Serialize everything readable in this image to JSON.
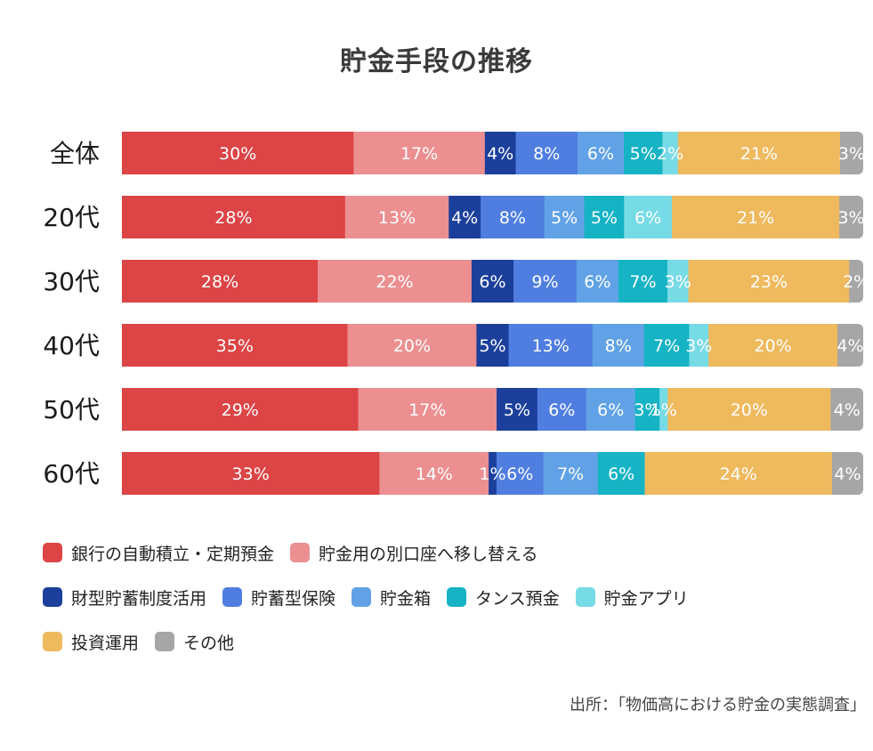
{
  "chart_data": {
    "type": "bar",
    "orientation": "horizontal",
    "stacked": true,
    "normalized": true,
    "title": "貯金手段の推移",
    "xlim": [
      0,
      100
    ],
    "categories": [
      "全体",
      "20代",
      "30代",
      "40代",
      "50代",
      "60代"
    ],
    "series": [
      {
        "name": "銀行の自動積立・定期預金",
        "color": "#dc4446",
        "values": [
          30,
          28,
          28,
          35,
          29,
          33
        ],
        "labels": [
          "30%",
          "28%",
          "28%",
          "35%",
          "29%",
          "33%"
        ]
      },
      {
        "name": "貯金用の別口座へ移し替える",
        "color": "#ec8f90",
        "values": [
          17,
          13,
          22,
          20,
          17,
          14
        ],
        "labels": [
          "17%",
          "13%",
          "22%",
          "20%",
          "17%",
          "14%"
        ]
      },
      {
        "name": "財型貯蓄制度活用",
        "color": "#1b3f9b",
        "values": [
          4,
          4,
          6,
          5,
          5,
          1
        ],
        "labels": [
          "4%",
          "4%",
          "6%",
          "5%",
          "5%",
          "1%"
        ]
      },
      {
        "name": "貯蓄型保険",
        "color": "#4f7ee0",
        "values": [
          8,
          8,
          9,
          13,
          6,
          6
        ],
        "labels": [
          "8%",
          "8%",
          "9%",
          "13%",
          "6%",
          "6%"
        ]
      },
      {
        "name": "貯金箱",
        "color": "#61a2e6",
        "values": [
          6,
          5,
          6,
          8,
          6,
          7
        ],
        "labels": [
          "6%",
          "5%",
          "6%",
          "8%",
          "6%",
          "7%"
        ]
      },
      {
        "name": "タンス預金",
        "color": "#15b3c4",
        "values": [
          5,
          5,
          7,
          7,
          3,
          6
        ],
        "labels": [
          "5%",
          "5%",
          "7%",
          "7%",
          "3%",
          "6%"
        ]
      },
      {
        "name": "貯金アプリ",
        "color": "#77dbe6",
        "values": [
          2,
          6,
          3,
          3,
          1,
          0
        ],
        "labels": [
          "2%",
          "6%",
          "3%",
          "3%",
          "1%",
          ""
        ]
      },
      {
        "name": "投資運用",
        "color": "#efb95e",
        "values": [
          21,
          21,
          23,
          20,
          20,
          24
        ],
        "labels": [
          "21%",
          "21%",
          "23%",
          "20%",
          "20%",
          "24%"
        ]
      },
      {
        "name": "その他",
        "color": "#a6a6a6",
        "values": [
          3,
          3,
          2,
          4,
          4,
          4
        ],
        "labels": [
          "3%",
          "3%",
          "2%",
          "4%",
          "4%",
          "4%"
        ]
      }
    ]
  },
  "source": "出所：「物価高における貯金の実態調査」"
}
